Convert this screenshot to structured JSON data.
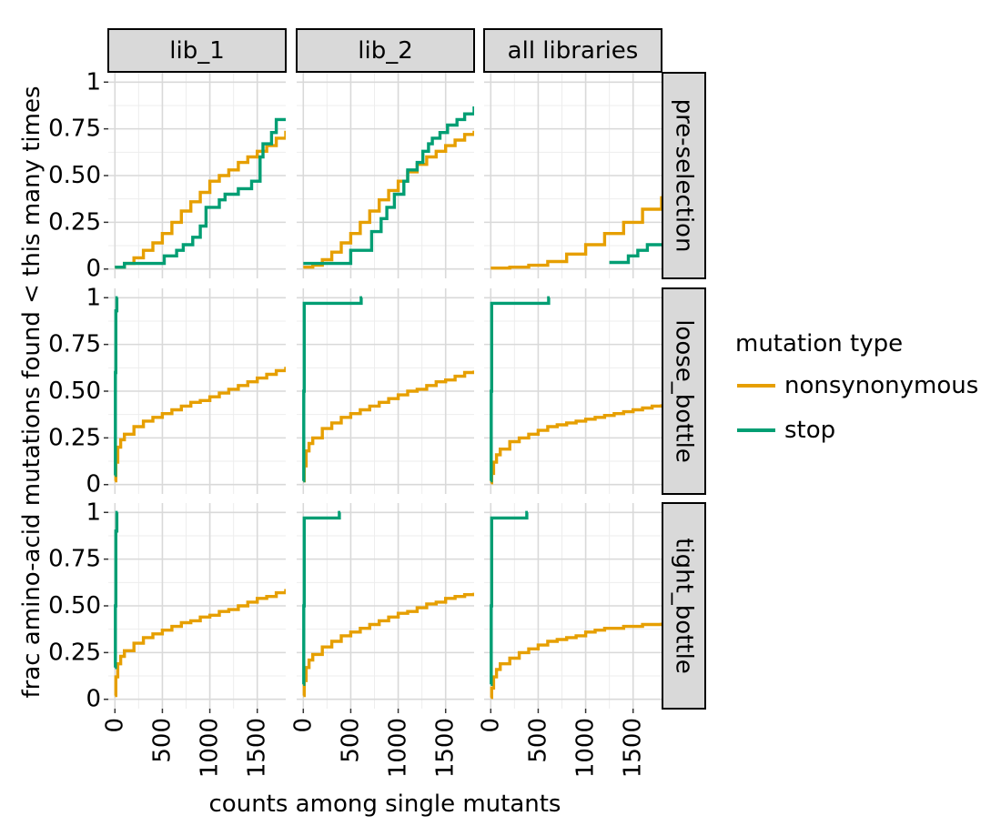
{
  "chart_data": {
    "type": "line",
    "subtype": "step (faceted ECDF grid)",
    "xlabel": "counts among single mutants",
    "ylabel": "frac amino-acid mutations found < this many times",
    "xlim": [
      -70,
      1800
    ],
    "ylim": [
      -0.05,
      1.05
    ],
    "x_ticks": [
      0,
      500,
      1000,
      1500
    ],
    "x_tick_labels": [
      "0",
      "500",
      "1000",
      "1500"
    ],
    "y_ticks": [
      0,
      0.25,
      0.5,
      0.75,
      1
    ],
    "y_tick_labels": [
      "0",
      "0.25",
      "0.50",
      "0.75",
      "1"
    ],
    "grid": true,
    "columns": [
      "lib_1",
      "lib_2",
      "all libraries"
    ],
    "rows": [
      "pre-selection",
      "loose_bottle",
      "tight_bottle"
    ],
    "legend": {
      "title": "mutation type",
      "position": "right",
      "entries": [
        {
          "name": "nonsynonymous",
          "color": "#E69F00"
        },
        {
          "name": "stop",
          "color": "#009E73"
        }
      ]
    },
    "panels": [
      {
        "col": "lib_1",
        "row": "pre-selection",
        "series": [
          {
            "name": "nonsynonymous",
            "x": [
              0,
              100,
              200,
              300,
              400,
              500,
              600,
              700,
              800,
              900,
              1000,
              1100,
              1200,
              1300,
              1400,
              1500,
              1600,
              1700,
              1800
            ],
            "y": [
              0.01,
              0.03,
              0.06,
              0.1,
              0.14,
              0.19,
              0.25,
              0.31,
              0.36,
              0.41,
              0.47,
              0.5,
              0.53,
              0.57,
              0.6,
              0.63,
              0.66,
              0.7,
              0.74
            ]
          },
          {
            "name": "stop",
            "x": [
              0,
              100,
              250,
              520,
              650,
              720,
              820,
              900,
              960,
              1100,
              1160,
              1300,
              1440,
              1530,
              1560,
              1650,
              1700,
              1800
            ],
            "y": [
              0.01,
              0.03,
              0.03,
              0.07,
              0.1,
              0.13,
              0.17,
              0.23,
              0.33,
              0.37,
              0.4,
              0.43,
              0.47,
              0.6,
              0.67,
              0.73,
              0.8,
              0.8
            ]
          }
        ]
      },
      {
        "col": "lib_2",
        "row": "pre-selection",
        "series": [
          {
            "name": "nonsynonymous",
            "x": [
              0,
              100,
              200,
              300,
              400,
              500,
              600,
              700,
              800,
              900,
              1000,
              1100,
              1200,
              1300,
              1400,
              1500,
              1600,
              1700,
              1800
            ],
            "y": [
              0.01,
              0.02,
              0.05,
              0.09,
              0.14,
              0.19,
              0.25,
              0.31,
              0.37,
              0.42,
              0.47,
              0.52,
              0.56,
              0.6,
              0.63,
              0.66,
              0.69,
              0.72,
              0.74
            ]
          },
          {
            "name": "stop",
            "x": [
              0,
              100,
              500,
              720,
              820,
              880,
              960,
              1060,
              1100,
              1200,
              1260,
              1320,
              1360,
              1440,
              1520,
              1620,
              1700,
              1800
            ],
            "y": [
              0.03,
              0.03,
              0.1,
              0.2,
              0.27,
              0.33,
              0.4,
              0.47,
              0.53,
              0.57,
              0.63,
              0.67,
              0.7,
              0.73,
              0.77,
              0.8,
              0.83,
              0.87
            ]
          }
        ]
      },
      {
        "col": "all libraries",
        "row": "pre-selection",
        "series": [
          {
            "name": "nonsynonymous",
            "x": [
              0,
              200,
              400,
              600,
              800,
              1000,
              1200,
              1400,
              1600,
              1800
            ],
            "y": [
              0.005,
              0.01,
              0.02,
              0.04,
              0.08,
              0.13,
              0.19,
              0.25,
              0.32,
              0.39
            ]
          },
          {
            "name": "stop",
            "x": [
              1250,
              1450,
              1550,
              1650,
              1800
            ],
            "y": [
              0.035,
              0.07,
              0.1,
              0.13,
              0.13
            ]
          }
        ]
      },
      {
        "col": "lib_1",
        "row": "loose_bottle",
        "series": [
          {
            "name": "nonsynonymous",
            "x": [
              0,
              10,
              30,
              60,
              100,
              200,
              300,
              400,
              500,
              600,
              700,
              800,
              900,
              1000,
              1100,
              1200,
              1300,
              1400,
              1500,
              1600,
              1700,
              1800
            ],
            "y": [
              0.02,
              0.12,
              0.2,
              0.24,
              0.27,
              0.31,
              0.34,
              0.36,
              0.38,
              0.4,
              0.42,
              0.44,
              0.45,
              0.47,
              0.49,
              0.51,
              0.53,
              0.55,
              0.57,
              0.59,
              0.61,
              0.63
            ]
          },
          {
            "name": "stop",
            "x": [
              0,
              5,
              10,
              20,
              30
            ],
            "y": [
              0.05,
              0.6,
              0.93,
              1.0,
              1.0
            ]
          }
        ]
      },
      {
        "col": "lib_2",
        "row": "loose_bottle",
        "series": [
          {
            "name": "nonsynonymous",
            "x": [
              0,
              10,
              30,
              60,
              100,
              200,
              300,
              400,
              500,
              600,
              700,
              800,
              900,
              1000,
              1100,
              1200,
              1300,
              1400,
              1500,
              1600,
              1700,
              1800
            ],
            "y": [
              0.02,
              0.1,
              0.18,
              0.22,
              0.25,
              0.3,
              0.33,
              0.36,
              0.38,
              0.4,
              0.42,
              0.44,
              0.46,
              0.48,
              0.5,
              0.51,
              0.53,
              0.55,
              0.56,
              0.58,
              0.6,
              0.61
            ]
          },
          {
            "name": "stop",
            "x": [
              0,
              5,
              10,
              600,
              610,
              620
            ],
            "y": [
              0.02,
              0.5,
              0.97,
              0.97,
              1.0,
              1.0
            ]
          }
        ]
      },
      {
        "col": "all libraries",
        "row": "loose_bottle",
        "series": [
          {
            "name": "nonsynonymous",
            "x": [
              0,
              10,
              30,
              60,
              100,
              200,
              300,
              400,
              500,
              600,
              700,
              800,
              900,
              1000,
              1100,
              1200,
              1300,
              1400,
              1500,
              1600,
              1700,
              1800
            ],
            "y": [
              0.01,
              0.06,
              0.12,
              0.16,
              0.19,
              0.23,
              0.25,
              0.27,
              0.29,
              0.31,
              0.32,
              0.33,
              0.34,
              0.35,
              0.36,
              0.37,
              0.38,
              0.39,
              0.4,
              0.41,
              0.42,
              0.43
            ]
          },
          {
            "name": "stop",
            "x": [
              0,
              5,
              10,
              600,
              610,
              620
            ],
            "y": [
              0.02,
              0.5,
              0.97,
              0.97,
              1.0,
              1.0
            ]
          }
        ]
      },
      {
        "col": "lib_1",
        "row": "tight_bottle",
        "series": [
          {
            "name": "nonsynonymous",
            "x": [
              0,
              10,
              30,
              60,
              100,
              200,
              300,
              400,
              500,
              600,
              700,
              800,
              900,
              1000,
              1100,
              1200,
              1300,
              1400,
              1500,
              1600,
              1700,
              1800
            ],
            "y": [
              0.02,
              0.12,
              0.19,
              0.23,
              0.26,
              0.3,
              0.33,
              0.35,
              0.37,
              0.39,
              0.41,
              0.42,
              0.44,
              0.45,
              0.47,
              0.48,
              0.5,
              0.52,
              0.54,
              0.55,
              0.57,
              0.59
            ]
          },
          {
            "name": "stop",
            "x": [
              0,
              5,
              10,
              20,
              30
            ],
            "y": [
              0.17,
              0.5,
              0.9,
              1.0,
              1.0
            ]
          }
        ]
      },
      {
        "col": "lib_2",
        "row": "tight_bottle",
        "series": [
          {
            "name": "nonsynonymous",
            "x": [
              0,
              10,
              30,
              60,
              100,
              200,
              300,
              400,
              500,
              600,
              700,
              800,
              900,
              1000,
              1100,
              1200,
              1300,
              1400,
              1500,
              1600,
              1700,
              1800
            ],
            "y": [
              0.02,
              0.1,
              0.17,
              0.21,
              0.24,
              0.28,
              0.31,
              0.34,
              0.36,
              0.38,
              0.4,
              0.42,
              0.44,
              0.46,
              0.47,
              0.49,
              0.51,
              0.52,
              0.54,
              0.55,
              0.56,
              0.57
            ]
          },
          {
            "name": "stop",
            "x": [
              0,
              5,
              10,
              370,
              380,
              390
            ],
            "y": [
              0.08,
              0.5,
              0.97,
              0.97,
              1.0,
              1.0
            ]
          }
        ]
      },
      {
        "col": "all libraries",
        "row": "tight_bottle",
        "series": [
          {
            "name": "nonsynonymous",
            "x": [
              0,
              10,
              30,
              60,
              100,
              200,
              300,
              400,
              500,
              600,
              700,
              800,
              900,
              1000,
              1100,
              1200,
              1300,
              1400,
              1500,
              1600,
              1700,
              1800
            ],
            "y": [
              0.01,
              0.06,
              0.12,
              0.16,
              0.19,
              0.22,
              0.25,
              0.27,
              0.29,
              0.31,
              0.32,
              0.33,
              0.34,
              0.36,
              0.37,
              0.38,
              0.38,
              0.39,
              0.39,
              0.4,
              0.4,
              0.41
            ]
          },
          {
            "name": "stop",
            "x": [
              0,
              5,
              10,
              370,
              380,
              390
            ],
            "y": [
              0.08,
              0.5,
              0.97,
              0.97,
              1.0,
              1.0
            ]
          }
        ]
      }
    ]
  }
}
